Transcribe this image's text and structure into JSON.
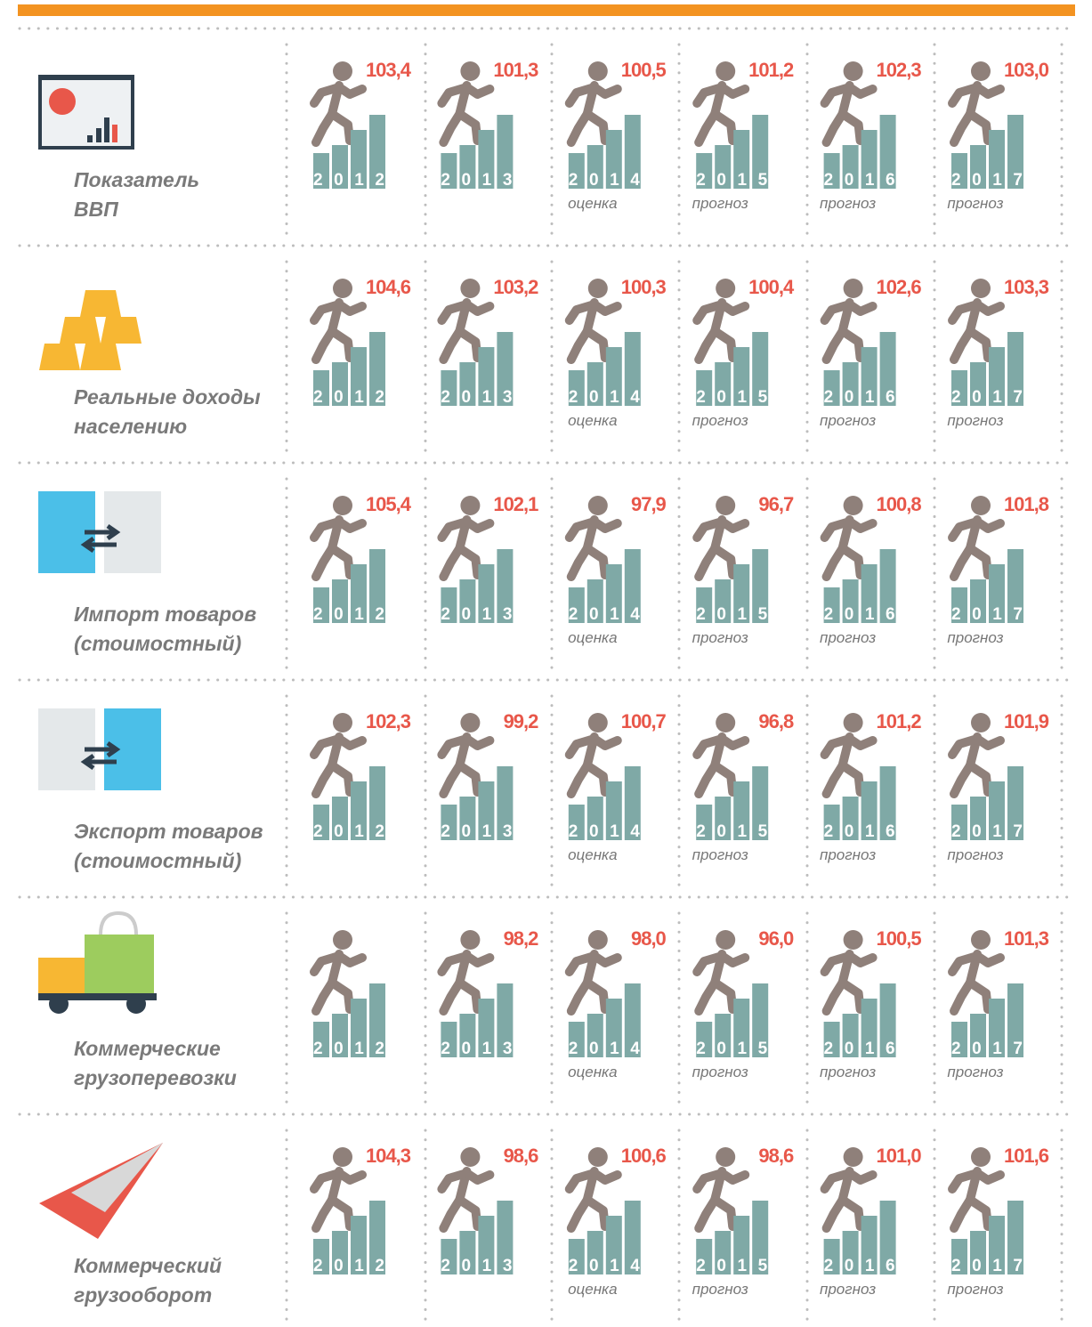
{
  "years": [
    "2012",
    "2013",
    "2014",
    "2015",
    "2016",
    "2017"
  ],
  "notes": [
    null,
    null,
    "оценка",
    "прогноз",
    "прогноз",
    "прогноз"
  ],
  "rows": [
    {
      "label": [
        "Показатель",
        "ВВП"
      ],
      "values": [
        "103,4",
        "101,3",
        "100,5",
        "101,2",
        "102,3",
        "103,0"
      ]
    },
    {
      "label": [
        "Реальные доходы",
        "населению"
      ],
      "values": [
        "104,6",
        "103,2",
        "100,3",
        "100,4",
        "102,6",
        "103,3"
      ]
    },
    {
      "label": [
        "Импорт товаров",
        "(стоимостный)"
      ],
      "values": [
        "105,4",
        "102,1",
        "97,9",
        "96,7",
        "100,8",
        "101,8"
      ]
    },
    {
      "label": [
        "Экспорт товаров",
        "(стоимостный)"
      ],
      "values": [
        "102,3",
        "99,2",
        "100,7",
        "96,8",
        "101,2",
        "101,9"
      ]
    },
    {
      "label": [
        "Коммерческие",
        "грузоперевозки"
      ],
      "values": [
        null,
        "98,2",
        "98,0",
        "96,0",
        "100,5",
        "101,3"
      ]
    },
    {
      "label": [
        "Коммерческий",
        "грузооборот"
      ],
      "values": [
        "104,3",
        "98,6",
        "100,6",
        "98,6",
        "101,0",
        "101,6"
      ]
    }
  ]
}
